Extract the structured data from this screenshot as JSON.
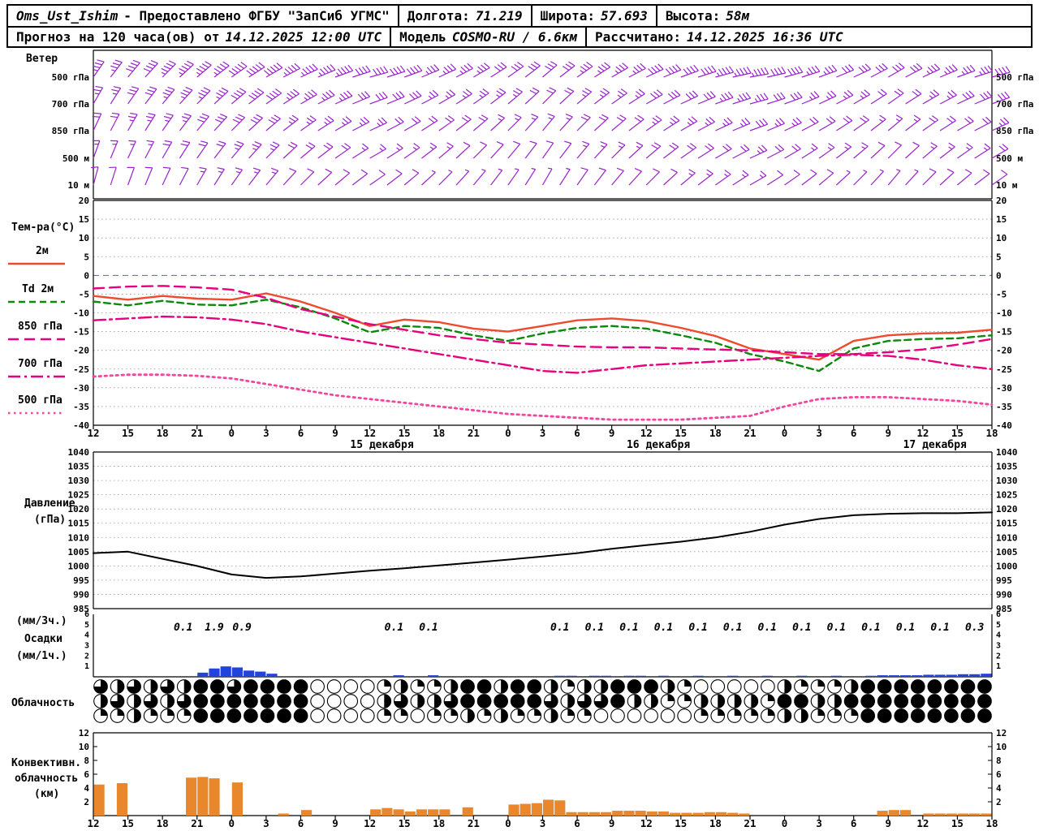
{
  "colors": {
    "wind": "#9922cc",
    "t2m": "#ee4a2e",
    "td2m": "#0a8a0a",
    "t850": "#e6007e",
    "t700": "#e6007e",
    "t500": "#f0479c",
    "pressure": "#000000",
    "precip_bar": "#2244dd",
    "conv_bar": "#e8872b",
    "grid": "#999999",
    "zero_line": "#4466dd",
    "frame": "#000000"
  },
  "header": {
    "row1": {
      "station_name": "Oms_Ust_Ishim",
      "station_suffix": "- Предоставлено ФГБУ \"ЗапСиб УГМС\"",
      "fields": [
        {
          "label": "Долгота:",
          "value": "71.219"
        },
        {
          "label": "Широта:",
          "value": "57.693"
        },
        {
          "label": "Высота:",
          "value": "58м"
        }
      ]
    },
    "row2": {
      "forecast_label": "Прогноз на 120 часа(ов) от",
      "forecast_time": "14.12.2025 12:00 UTC",
      "model_label": "Модель",
      "model_value": "COSMO-RU / 6.6км",
      "calc_label": "Рассчитано:",
      "calc_time": "14.12.2025 16:36 UTC"
    }
  },
  "legend": {
    "wind": "Ветер",
    "temp_title": "Тем-ра(°C)",
    "t2m": "2м",
    "td2m": "Td 2м",
    "t850": "850 гПа",
    "t700": "700 гПа",
    "t500": "500 гПа",
    "pressure1": "Давление",
    "pressure2": "(гПа)",
    "precip_unit3": "(мм/3ч.)",
    "precip": "Осадки",
    "precip_unit1": "(мм/1ч.)",
    "cloud": "Облачность",
    "conv1": "Конвективн.",
    "conv2": "облачность",
    "conv3": "(км)"
  },
  "time_axis": {
    "hours": [
      "12",
      "15",
      "18",
      "21",
      "0",
      "3",
      "6",
      "9",
      "12",
      "15",
      "18",
      "21",
      "0",
      "3",
      "6",
      "9",
      "12",
      "15",
      "18",
      "21",
      "0",
      "3",
      "6",
      "9",
      "12",
      "15",
      "18"
    ],
    "dates": [
      {
        "label": "15 декабря",
        "tick": 8.35
      },
      {
        "label": "16 декабря",
        "tick": 16.35
      },
      {
        "label": "17 декабря",
        "tick": 24.35
      }
    ]
  },
  "chart_data": [
    {
      "id": "wind",
      "type": "wind-barbs",
      "title": "Ветер",
      "levels": [
        {
          "label": "500 гПа",
          "angles": [
            35,
            40,
            45,
            50,
            55,
            60,
            65,
            70,
            75,
            70,
            65,
            60,
            55,
            50,
            55,
            60,
            65,
            70,
            75,
            80,
            75,
            70,
            65,
            60,
            65,
            70,
            75
          ],
          "speeds": [
            35,
            40,
            45,
            45,
            50,
            50,
            45,
            45,
            40,
            40,
            35,
            35,
            30,
            30,
            35,
            35,
            40,
            40,
            45,
            45,
            40,
            35,
            30,
            30,
            35,
            35,
            40
          ]
        },
        {
          "label": "700 гПа",
          "angles": [
            30,
            35,
            40,
            45,
            50,
            55,
            60,
            65,
            70,
            65,
            60,
            55,
            50,
            45,
            50,
            55,
            60,
            65,
            70,
            75,
            70,
            65,
            60,
            55,
            60,
            65,
            70
          ],
          "speeds": [
            25,
            30,
            35,
            35,
            40,
            40,
            35,
            35,
            30,
            30,
            25,
            25,
            25,
            20,
            25,
            25,
            30,
            30,
            35,
            35,
            30,
            25,
            25,
            20,
            25,
            30,
            30
          ]
        },
        {
          "label": "850 гПа",
          "angles": [
            25,
            30,
            35,
            40,
            45,
            50,
            55,
            60,
            65,
            60,
            55,
            50,
            45,
            40,
            45,
            50,
            55,
            60,
            65,
            70,
            65,
            60,
            55,
            50,
            55,
            60,
            65
          ],
          "speeds": [
            20,
            25,
            25,
            30,
            30,
            30,
            25,
            25,
            25,
            20,
            20,
            20,
            15,
            15,
            20,
            20,
            25,
            25,
            25,
            30,
            25,
            20,
            20,
            15,
            20,
            20,
            25
          ]
        },
        {
          "label": "500 м",
          "angles": [
            20,
            25,
            30,
            35,
            40,
            45,
            50,
            55,
            60,
            55,
            50,
            45,
            40,
            35,
            40,
            45,
            50,
            55,
            60,
            65,
            60,
            55,
            50,
            45,
            50,
            55,
            60
          ],
          "speeds": [
            15,
            15,
            20,
            20,
            25,
            25,
            20,
            20,
            15,
            15,
            15,
            10,
            10,
            10,
            15,
            15,
            20,
            20,
            20,
            25,
            20,
            15,
            15,
            10,
            15,
            15,
            20
          ]
        },
        {
          "label": "10 м",
          "angles": [
            15,
            20,
            25,
            30,
            35,
            40,
            45,
            50,
            55,
            50,
            45,
            40,
            35,
            30,
            35,
            40,
            45,
            50,
            55,
            60,
            55,
            50,
            45,
            40,
            45,
            50,
            55
          ],
          "speeds": [
            10,
            10,
            10,
            15,
            15,
            15,
            10,
            10,
            10,
            10,
            5,
            5,
            5,
            5,
            10,
            10,
            10,
            15,
            15,
            15,
            10,
            10,
            5,
            5,
            10,
            10,
            10
          ]
        }
      ]
    },
    {
      "id": "temperature",
      "type": "line",
      "title": "Тем-ра(°C)",
      "ylim": [
        -40,
        20
      ],
      "yticks": [
        20,
        15,
        10,
        5,
        0,
        -5,
        -10,
        -15,
        -20,
        -25,
        -30,
        -35,
        -40
      ],
      "series": [
        {
          "key": "t2m",
          "name": "2м",
          "style": "solid",
          "values": [
            -5.5,
            -6.5,
            -5.5,
            -6.2,
            -6.5,
            -4.8,
            -7,
            -10,
            -13.5,
            -11.8,
            -12.5,
            -14.2,
            -15,
            -13.5,
            -12,
            -11.5,
            -12.2,
            -14,
            -16.2,
            -19.5,
            -21,
            -22.5,
            -17.5,
            -16,
            -15.5,
            -15.3,
            -14.5
          ]
        },
        {
          "key": "td2m",
          "name": "Td 2м",
          "style": "shortdash",
          "values": [
            -7,
            -8,
            -6.8,
            -7.8,
            -8,
            -6.5,
            -8.5,
            -11.5,
            -15.2,
            -13.5,
            -14,
            -16,
            -17.5,
            -15.5,
            -14,
            -13.5,
            -14.2,
            -16,
            -18,
            -21,
            -23,
            -25.5,
            -19.5,
            -17.5,
            -17,
            -16.8,
            -16
          ]
        },
        {
          "key": "t850",
          "name": "850 гПа",
          "style": "dash",
          "values": [
            -3.5,
            -3,
            -2.8,
            -3.2,
            -3.8,
            -6,
            -9,
            -11,
            -13,
            -14.5,
            -16,
            -17,
            -18,
            -18.5,
            -19,
            -19.2,
            -19.2,
            -19.5,
            -19.8,
            -20,
            -20.5,
            -21,
            -21,
            -20.5,
            -19.8,
            -18.5,
            -17
          ]
        },
        {
          "key": "t700",
          "name": "700 гПа",
          "style": "dashdot",
          "values": [
            -12,
            -11.5,
            -11,
            -11.2,
            -11.8,
            -13,
            -15,
            -16.5,
            -18,
            -19.5,
            -21,
            -22.5,
            -24,
            -25.5,
            -26,
            -25,
            -24,
            -23.5,
            -23,
            -22.5,
            -22,
            -21.5,
            -21.2,
            -21.5,
            -22.5,
            -24,
            -25
          ]
        },
        {
          "key": "t500",
          "name": "500 гПа",
          "style": "dot",
          "values": [
            -27,
            -26.5,
            -26.5,
            -26.8,
            -27.5,
            -29,
            -30.5,
            -32,
            -33,
            -34,
            -35,
            -36,
            -37,
            -37.5,
            -38,
            -38.5,
            -38.5,
            -38.5,
            -38,
            -37.5,
            -35,
            -33,
            -32.5,
            -32.5,
            -33,
            -33.5,
            -34.5
          ]
        }
      ]
    },
    {
      "id": "pressure",
      "type": "line",
      "title": "Давление (гПа)",
      "ylim": [
        985,
        1040
      ],
      "yticks": [
        1040,
        1035,
        1030,
        1025,
        1020,
        1015,
        1010,
        1005,
        1000,
        995,
        990,
        985
      ],
      "values": [
        1004.5,
        1005,
        1002.5,
        1000,
        997,
        995.8,
        996.3,
        997.3,
        998.3,
        999.2,
        1000.2,
        1001.2,
        1002.2,
        1003.3,
        1004.5,
        1006,
        1007.3,
        1008.5,
        1010,
        1012,
        1014.5,
        1016.5,
        1017.8,
        1018.3,
        1018.5,
        1018.5,
        1018.8
      ]
    },
    {
      "id": "precipitation",
      "type": "bar",
      "title": "Осадки",
      "ylim": [
        0,
        6
      ],
      "yticks": [
        6,
        5,
        4,
        3,
        2,
        1
      ],
      "labels_3h": [
        {
          "t": 2.6,
          "v": "0.1"
        },
        {
          "t": 3.5,
          "v": "1.9"
        },
        {
          "t": 4.3,
          "v": "0.9"
        },
        {
          "t": 8.7,
          "v": "0.1"
        },
        {
          "t": 9.7,
          "v": "0.1"
        },
        {
          "t": 13.5,
          "v": "0.1"
        },
        {
          "t": 14.5,
          "v": "0.1"
        },
        {
          "t": 15.5,
          "v": "0.1"
        },
        {
          "t": 16.5,
          "v": "0.1"
        },
        {
          "t": 17.5,
          "v": "0.1"
        },
        {
          "t": 18.5,
          "v": "0.1"
        },
        {
          "t": 19.5,
          "v": "0.1"
        },
        {
          "t": 20.5,
          "v": "0.1"
        },
        {
          "t": 21.5,
          "v": "0.1"
        },
        {
          "t": 22.5,
          "v": "0.1"
        },
        {
          "t": 23.5,
          "v": "0.1"
        },
        {
          "t": 24.5,
          "v": "0.1"
        },
        {
          "t": 25.5,
          "v": "0.3"
        }
      ],
      "bars_1h": [
        [
          9,
          0.4
        ],
        [
          10,
          0.8
        ],
        [
          11,
          1.0
        ],
        [
          12,
          0.9
        ],
        [
          13,
          0.6
        ],
        [
          14,
          0.5
        ],
        [
          15,
          0.3
        ],
        [
          26,
          0.15
        ],
        [
          29,
          0.15
        ],
        [
          40,
          0.1
        ],
        [
          41,
          0.1
        ],
        [
          43,
          0.1
        ],
        [
          44,
          0.1
        ],
        [
          46,
          0.1
        ],
        [
          47,
          0.1
        ],
        [
          49,
          0.1
        ],
        [
          52,
          0.1
        ],
        [
          55,
          0.1
        ],
        [
          58,
          0.1
        ],
        [
          61,
          0.1
        ],
        [
          64,
          0.1
        ],
        [
          67,
          0.1
        ],
        [
          68,
          0.15
        ],
        [
          69,
          0.15
        ],
        [
          70,
          0.15
        ],
        [
          71,
          0.15
        ],
        [
          72,
          0.2
        ],
        [
          73,
          0.2
        ],
        [
          74,
          0.2
        ],
        [
          75,
          0.25
        ],
        [
          76,
          0.25
        ],
        [
          77,
          0.3
        ]
      ]
    },
    {
      "id": "cloud",
      "type": "heatmap",
      "title": "Облачность",
      "unit": "eighths",
      "rows": [
        [
          6,
          4,
          6,
          4,
          6,
          4,
          8,
          8,
          6,
          8,
          8,
          8,
          8,
          0,
          0,
          0,
          0,
          2,
          4,
          2,
          2,
          4,
          8,
          8,
          4,
          8,
          8,
          4,
          2,
          4,
          4,
          8,
          8,
          8,
          4,
          2,
          0,
          0,
          0,
          0,
          0,
          4,
          2,
          2,
          2,
          4,
          8,
          8,
          8,
          8,
          8,
          8,
          8,
          8
        ],
        [
          4,
          6,
          4,
          6,
          4,
          6,
          8,
          8,
          8,
          8,
          8,
          8,
          8,
          0,
          0,
          0,
          0,
          4,
          6,
          4,
          4,
          6,
          8,
          8,
          8,
          8,
          8,
          6,
          4,
          6,
          6,
          8,
          4,
          4,
          2,
          2,
          4,
          4,
          4,
          4,
          2,
          8,
          8,
          4,
          4,
          8,
          8,
          8,
          8,
          8,
          8,
          8,
          8,
          8
        ],
        [
          2,
          2,
          4,
          2,
          2,
          2,
          8,
          8,
          8,
          8,
          8,
          8,
          8,
          0,
          0,
          0,
          0,
          2,
          2,
          0,
          2,
          2,
          4,
          2,
          4,
          2,
          2,
          4,
          2,
          2,
          0,
          0,
          0,
          0,
          0,
          0,
          2,
          2,
          2,
          2,
          2,
          4,
          4,
          2,
          2,
          2,
          8,
          8,
          8,
          8,
          8,
          8,
          8,
          8
        ]
      ]
    },
    {
      "id": "convective",
      "type": "bar",
      "title": "Конвективн. облачность (км)",
      "ylim": [
        0,
        12
      ],
      "yticks": [
        12,
        10,
        8,
        6,
        4,
        2
      ],
      "bars": [
        [
          0,
          4.5
        ],
        [
          2,
          4.7
        ],
        [
          8,
          5.5
        ],
        [
          9,
          5.6
        ],
        [
          10,
          5.4
        ],
        [
          12,
          4.8
        ],
        [
          16,
          0.3
        ],
        [
          18,
          0.8
        ],
        [
          24,
          0.9
        ],
        [
          25,
          1.1
        ],
        [
          26,
          0.9
        ],
        [
          27,
          0.6
        ],
        [
          28,
          0.9
        ],
        [
          29,
          0.9
        ],
        [
          30,
          0.9
        ],
        [
          32,
          1.2
        ],
        [
          36,
          1.6
        ],
        [
          37,
          1.7
        ],
        [
          38,
          1.8
        ],
        [
          39,
          2.3
        ],
        [
          40,
          2.2
        ],
        [
          41,
          0.5
        ],
        [
          42,
          0.5
        ],
        [
          43,
          0.5
        ],
        [
          44,
          0.5
        ],
        [
          45,
          0.7
        ],
        [
          46,
          0.7
        ],
        [
          47,
          0.7
        ],
        [
          48,
          0.6
        ],
        [
          49,
          0.6
        ],
        [
          50,
          0.4
        ],
        [
          51,
          0.4
        ],
        [
          52,
          0.4
        ],
        [
          53,
          0.5
        ],
        [
          54,
          0.5
        ],
        [
          55,
          0.4
        ],
        [
          56,
          0.3
        ],
        [
          68,
          0.7
        ],
        [
          69,
          0.8
        ],
        [
          70,
          0.8
        ],
        [
          72,
          0.3
        ],
        [
          73,
          0.3
        ],
        [
          74,
          0.3
        ],
        [
          75,
          0.3
        ],
        [
          76,
          0.3
        ],
        [
          77,
          0.3
        ]
      ]
    }
  ]
}
